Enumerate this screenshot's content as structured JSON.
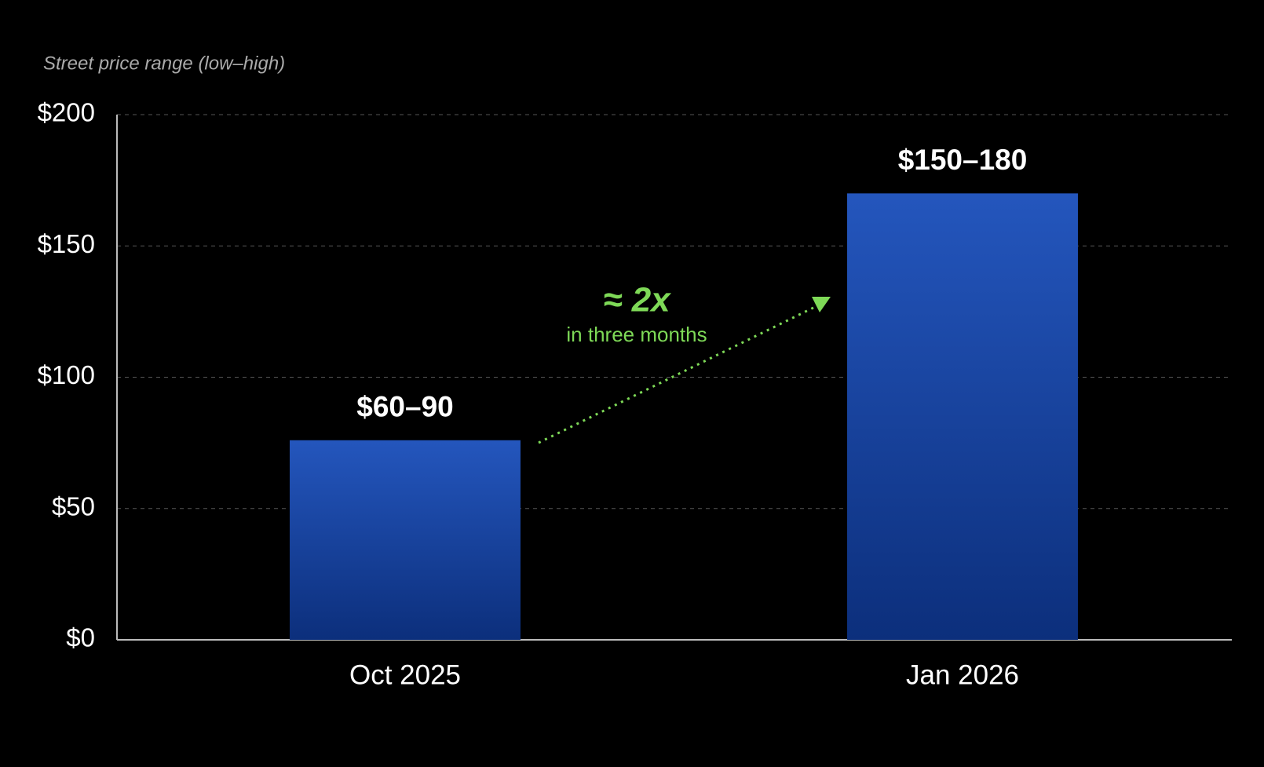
{
  "chart_data": {
    "type": "bar",
    "axis_label": "Street price range (low–high)",
    "categories": [
      "Oct 2025",
      "Jan 2026"
    ],
    "values": [
      76,
      170
    ],
    "bar_labels": [
      "$60–90",
      "$150–180"
    ],
    "color": "#2456bd",
    "ylim": [
      0,
      200
    ],
    "yticks": [
      {
        "value": 0,
        "label": "$0"
      },
      {
        "value": 50,
        "label": "$50"
      },
      {
        "value": 100,
        "label": "$100"
      },
      {
        "value": 150,
        "label": "$150"
      },
      {
        "value": 200,
        "label": "$200"
      }
    ],
    "grid": true,
    "annotation": {
      "title": "≈ 2x",
      "subtitle": "in three months",
      "color": "#7ed957"
    }
  }
}
